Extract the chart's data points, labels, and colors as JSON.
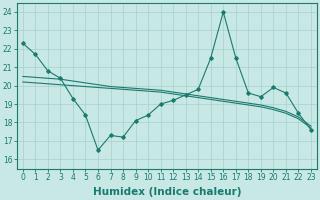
{
  "xlabel": "Humidex (Indice chaleur)",
  "line_color": "#1a7a6e",
  "bg_color": "#c8e8e5",
  "grid_color": "#a8d0cc",
  "ylim": [
    15.5,
    24.5
  ],
  "yticks": [
    16,
    17,
    18,
    19,
    20,
    21,
    22,
    23,
    24
  ],
  "xticks": [
    0,
    1,
    2,
    3,
    4,
    5,
    6,
    7,
    8,
    9,
    10,
    11,
    12,
    13,
    14,
    15,
    16,
    17,
    18,
    19,
    20,
    21,
    22,
    23
  ],
  "tick_fontsize": 5.5,
  "label_fontsize": 7.5,
  "line1_x": [
    0,
    1,
    2,
    3,
    4,
    5,
    6,
    7,
    8,
    9,
    10,
    11,
    12,
    13,
    14,
    15,
    16,
    17,
    18,
    19,
    20,
    21,
    22,
    23
  ],
  "line1_y": [
    22.3,
    21.7,
    20.8,
    20.4,
    19.3,
    18.4,
    16.5,
    17.3,
    17.2,
    18.1,
    18.4,
    19.0,
    19.2,
    19.5,
    19.8,
    21.5,
    24.0,
    21.5,
    19.6,
    19.4,
    19.9,
    19.6,
    18.5,
    17.6
  ],
  "line2_x": [
    0,
    1,
    2,
    3,
    4,
    5,
    6,
    7,
    8,
    9,
    10,
    11,
    12,
    13,
    14,
    15,
    16,
    17,
    18,
    19,
    20,
    21,
    22,
    23
  ],
  "line2_y": [
    20.2,
    20.15,
    20.1,
    20.05,
    20.0,
    19.95,
    19.9,
    19.85,
    19.8,
    19.75,
    19.7,
    19.65,
    19.55,
    19.45,
    19.35,
    19.25,
    19.15,
    19.05,
    18.95,
    18.85,
    18.7,
    18.5,
    18.2,
    17.7
  ],
  "line3_x": [
    0,
    1,
    2,
    3,
    4,
    5,
    6,
    7,
    8,
    9,
    10,
    11,
    12,
    13,
    14,
    15,
    16,
    17,
    18,
    19,
    20,
    21,
    22,
    23
  ],
  "line3_y": [
    20.5,
    20.45,
    20.4,
    20.35,
    20.25,
    20.15,
    20.05,
    19.95,
    19.9,
    19.85,
    19.8,
    19.75,
    19.65,
    19.55,
    19.45,
    19.35,
    19.25,
    19.15,
    19.05,
    18.95,
    18.8,
    18.6,
    18.3,
    17.8
  ]
}
